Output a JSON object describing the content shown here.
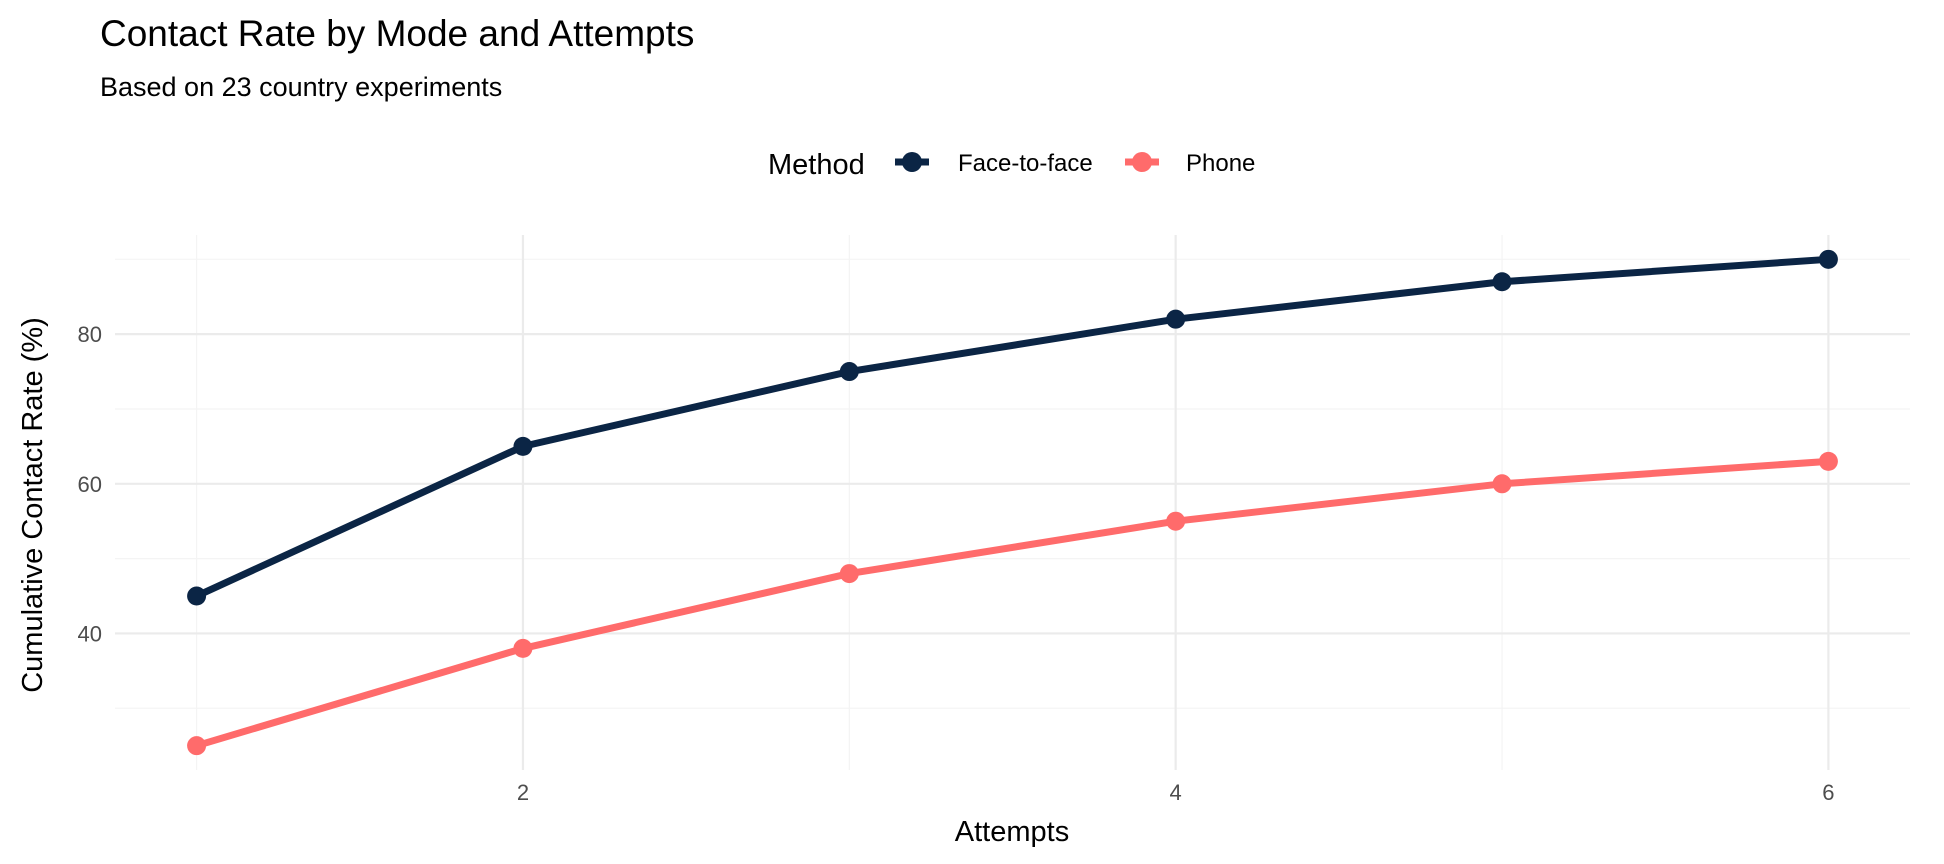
{
  "chart_data": {
    "type": "line",
    "title": "Contact Rate by Mode and Attempts",
    "subtitle": "Based on 23 country experiments",
    "xlabel": "Attempts",
    "ylabel": "Cumulative Contact Rate (%)",
    "x": [
      1,
      2,
      3,
      4,
      5,
      6
    ],
    "xlim": [
      0.75,
      6.25
    ],
    "ylim": [
      21.75,
      93.25
    ],
    "x_ticks": [
      2,
      4,
      6
    ],
    "x_tick_labels": [
      "2",
      "4",
      "6"
    ],
    "y_ticks": [
      40,
      60,
      80
    ],
    "y_tick_labels": [
      "40",
      "60",
      "80"
    ],
    "grid": true,
    "legend": {
      "title": "Method",
      "position": "top"
    },
    "series": [
      {
        "name": "Face-to-face",
        "color": "#0b2545",
        "values": [
          45,
          65,
          75,
          82,
          87,
          90
        ]
      },
      {
        "name": "Phone",
        "color": "#ff6b6b",
        "values": [
          25,
          38,
          48,
          55,
          60,
          63
        ]
      }
    ]
  }
}
